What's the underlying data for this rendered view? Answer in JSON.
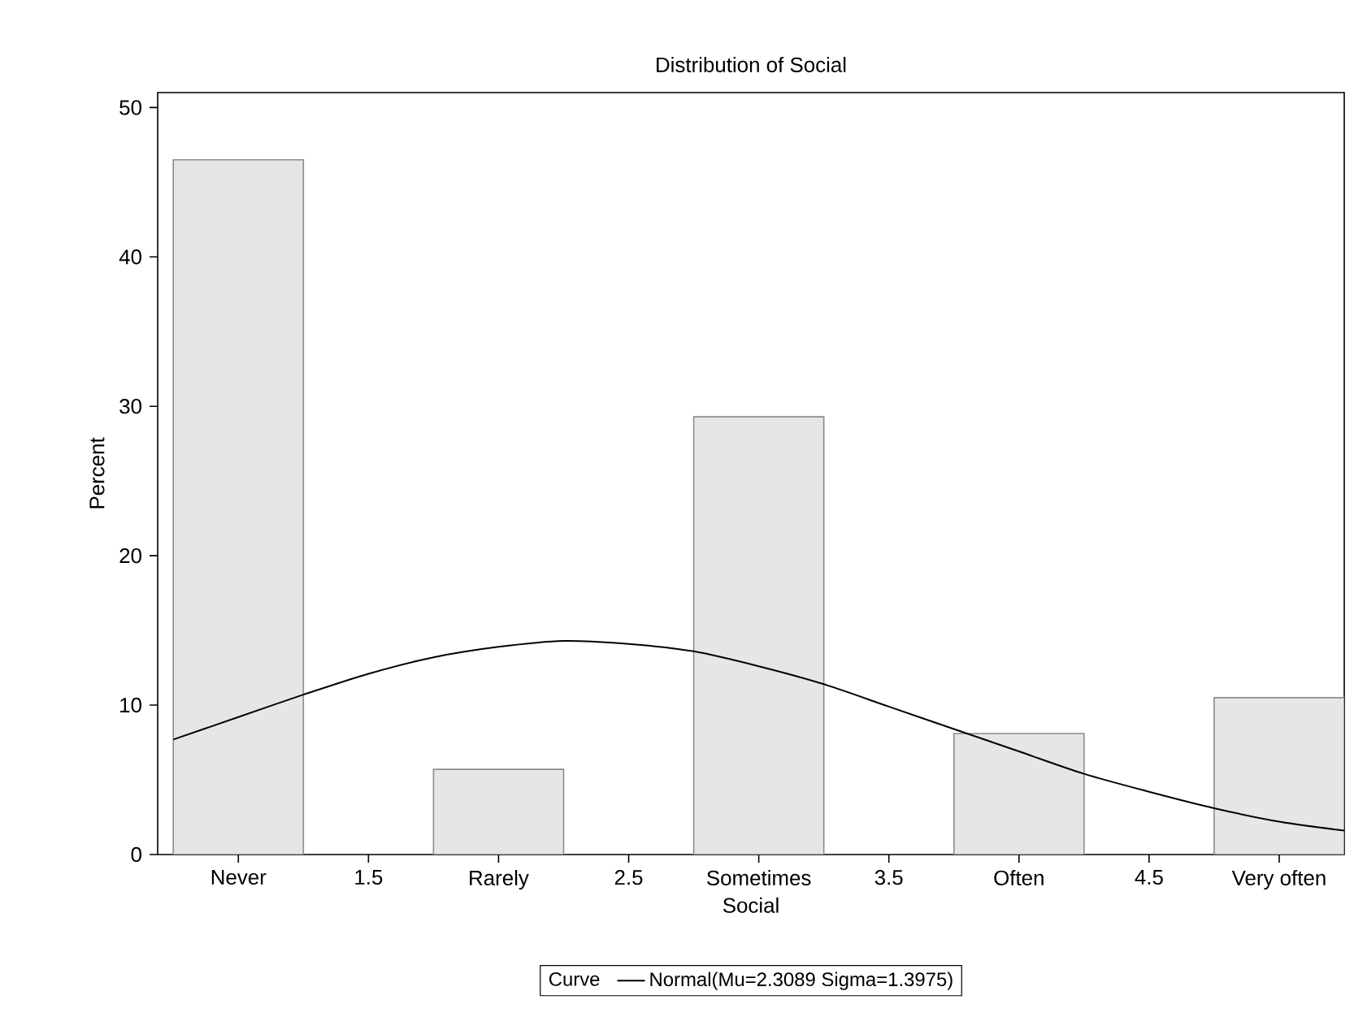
{
  "chart_data": {
    "type": "bar",
    "title": "Distribution of Social",
    "xlabel": "Social",
    "ylabel": "Percent",
    "legend_title": "Curve",
    "legend": "bottom",
    "x": [
      1,
      2,
      3,
      4,
      5
    ],
    "xlim": [
      0.69,
      5.25
    ],
    "xticks": [
      {
        "value": 1,
        "label": "Never"
      },
      1.5,
      {
        "value": 2,
        "label": "Rarely"
      },
      2.5,
      {
        "value": 3,
        "label": "Sometimes"
      },
      3.5,
      {
        "value": 4,
        "label": "Often"
      },
      4.5,
      {
        "value": 5,
        "label": "Very often"
      }
    ],
    "ylim": [
      0,
      51
    ],
    "yticks": [
      0,
      10,
      20,
      30,
      40,
      50
    ],
    "series": [
      {
        "color": "#e6e6e6",
        "values": [
          46.5,
          5.7,
          29.3,
          8.1,
          10.5
        ]
      },
      {
        "type": "line",
        "name": "Normal(Mu=2.3089 Sigma=1.3975)",
        "color": "#000000",
        "x": [
          0.75,
          1.0,
          1.25,
          1.5,
          1.75,
          2.0,
          2.25,
          2.5,
          2.75,
          3.0,
          3.25,
          3.5,
          3.75,
          4.0,
          4.25,
          4.5,
          4.75,
          5.0,
          5.25
        ],
        "values": [
          7.7,
          9.2,
          10.7,
          12.1,
          13.2,
          13.9,
          14.3,
          14.1,
          13.6,
          12.6,
          11.4,
          9.9,
          8.4,
          6.9,
          5.4,
          4.2,
          3.1,
          2.2,
          1.6
        ]
      }
    ]
  }
}
